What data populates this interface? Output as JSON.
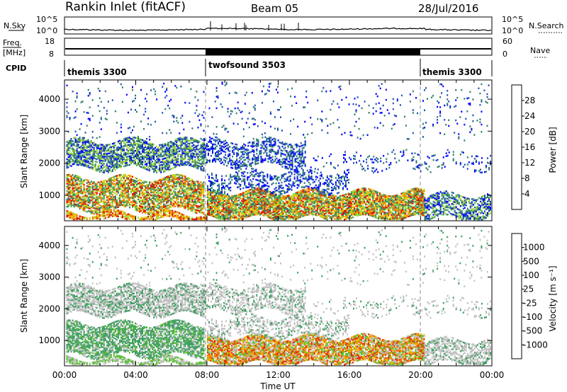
{
  "header": {
    "station": "Rankin Inlet (fitACF)",
    "beam": "Beam 05",
    "date": "28/Jul/2016"
  },
  "strip_labels": {
    "nsky": "N.Sky",
    "nsky_ticks": [
      "10^5",
      "10^0"
    ],
    "nsearch": "N.Search",
    "nsearch_ticks": [
      "10^5",
      "10^0"
    ],
    "freq_line1": "Freq.",
    "freq_line2": "[MHz]",
    "freq_ticks": [
      "18",
      "8"
    ],
    "nave": "Nave",
    "nave_ticks": [
      "60",
      "0"
    ],
    "cpid": "CPID"
  },
  "cpid_segments": [
    {
      "label": "themis 3300",
      "start_hour": 0,
      "end_hour": 8
    },
    {
      "label": "twofsound 3503",
      "start_hour": 8,
      "end_hour": 20
    },
    {
      "label": "themis 3300",
      "start_hour": 20,
      "end_hour": 24
    }
  ],
  "chart_data": [
    {
      "type": "heatmap",
      "name": "power",
      "ylabel": "Slant Range [km]",
      "yticks": [
        "1000",
        "2000",
        "3000",
        "4000"
      ],
      "ylim": [
        200,
        4600
      ],
      "xlim": [
        0,
        24
      ],
      "colorbar_label": "Power [dB]",
      "colorbar_ticks": [
        "4",
        "8",
        "12",
        "16",
        "20",
        "24",
        "28"
      ],
      "colorbar_colors": [
        "#0000ff",
        "#2050b8",
        "#2e7d6a",
        "#52a852",
        "#a8d838",
        "#f0c000",
        "#f07800",
        "#e01000"
      ]
    },
    {
      "type": "heatmap",
      "name": "velocity",
      "ylabel": "Slant Range [km]",
      "yticks": [
        "1000",
        "2000",
        "3000",
        "4000"
      ],
      "ylim": [
        200,
        4600
      ],
      "xlim": [
        0,
        24
      ],
      "xlabel": "Time UT",
      "xticks": [
        "00:00",
        "04:00",
        "08:00",
        "12:00",
        "16:00",
        "20:00",
        "00:00"
      ],
      "colorbar_label": "Velocity [m s⁻¹]",
      "colorbar_ticks": [
        "1000",
        "500",
        "100",
        "25",
        "-25",
        "-100",
        "-500",
        "-1000"
      ],
      "colorbar_colors": [
        "#2048c0",
        "#2e7d8a",
        "#3e9e60",
        "#58c030",
        "#c0c0c0",
        "#f0b000",
        "#f07800",
        "#e03000",
        "#e00000"
      ]
    }
  ]
}
